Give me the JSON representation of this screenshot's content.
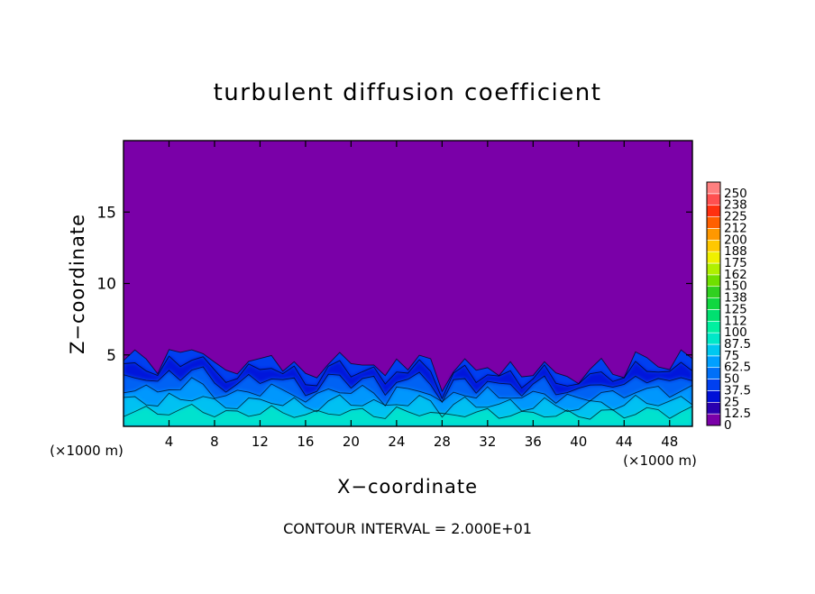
{
  "chart_data": {
    "type": "heatmap",
    "title": "turbulent diffusion coefficient",
    "xlabel": "X−coordinate",
    "ylabel": "Z−coordinate",
    "x_unit_left": "(×1000 m)",
    "x_unit_right": "(×1000 m)",
    "footer": "CONTOUR INTERVAL = 2.000E+01",
    "xlim": [
      0,
      50
    ],
    "ylim": [
      0,
      20
    ],
    "x_ticks": [
      4,
      8,
      12,
      16,
      20,
      24,
      28,
      32,
      36,
      40,
      44,
      48
    ],
    "y_ticks": [
      5,
      10,
      15
    ],
    "colorbar": {
      "labels": [
        "0",
        "12.5",
        "25",
        "37.5",
        "50",
        "62.5",
        "75",
        "87.5",
        "100",
        "112",
        "125",
        "138",
        "150",
        "162",
        "175",
        "188",
        "200",
        "212",
        "225",
        "238",
        "250"
      ],
      "colors": [
        "#7a00a8",
        "#2a00b0",
        "#0010d8",
        "#0040f0",
        "#0070f8",
        "#00a0ff",
        "#00c8f0",
        "#00e8c8",
        "#00f0a0",
        "#00e070",
        "#10d840",
        "#30d020",
        "#70e000",
        "#b0f000",
        "#f0f000",
        "#ffc800",
        "#ff9800",
        "#ff6000",
        "#ff3010",
        "#ff5050",
        "#ff8080"
      ]
    },
    "field": {
      "background": "#7a00a8",
      "boundary_layer_top": [
        4.6,
        5.0,
        4.8,
        4.0,
        5.2,
        4.9,
        5.6,
        5.3,
        4.2,
        3.8,
        4.0,
        4.6,
        4.4,
        5.0,
        4.2,
        4.4,
        3.4,
        3.6,
        4.6,
        4.9,
        4.2,
        4.6,
        4.4,
        3.2,
        4.7,
        4.3,
        4.9,
        4.4,
        2.6,
        4.1,
        4.5,
        3.7,
        4.4,
        3.7,
        4.2,
        3.4,
        3.9,
        4.5,
        3.4,
        3.6,
        3.3,
        3.8,
        4.5,
        3.9,
        3.6,
        4.9,
        4.7,
        4.5,
        4.0,
        5.0,
        4.8
      ]
    }
  }
}
